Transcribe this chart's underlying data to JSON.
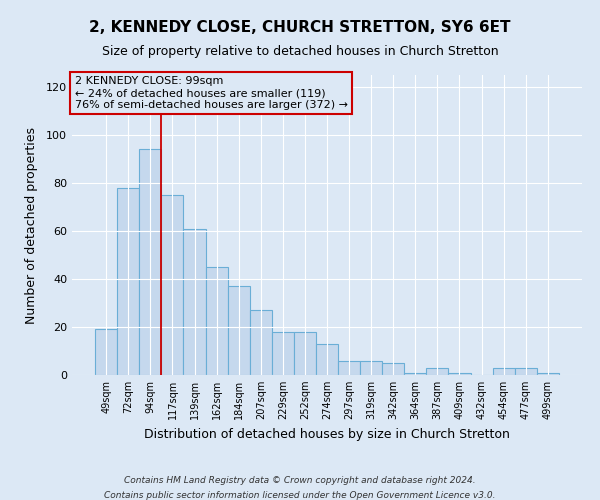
{
  "title": "2, KENNEDY CLOSE, CHURCH STRETTON, SY6 6ET",
  "subtitle": "Size of property relative to detached houses in Church Stretton",
  "xlabel": "Distribution of detached houses by size in Church Stretton",
  "ylabel": "Number of detached properties",
  "footer_line1": "Contains HM Land Registry data © Crown copyright and database right 2024.",
  "footer_line2": "Contains public sector information licensed under the Open Government Licence v3.0.",
  "annotation_line1": "2 KENNEDY CLOSE: 99sqm",
  "annotation_line2": "← 24% of detached houses are smaller (119)",
  "annotation_line3": "76% of semi-detached houses are larger (372) →",
  "bar_labels": [
    "49sqm",
    "72sqm",
    "94sqm",
    "117sqm",
    "139sqm",
    "162sqm",
    "184sqm",
    "207sqm",
    "229sqm",
    "252sqm",
    "274sqm",
    "297sqm",
    "319sqm",
    "342sqm",
    "364sqm",
    "387sqm",
    "409sqm",
    "432sqm",
    "454sqm",
    "477sqm",
    "499sqm"
  ],
  "bar_values": [
    19,
    78,
    94,
    75,
    61,
    45,
    37,
    27,
    18,
    18,
    13,
    6,
    6,
    5,
    1,
    3,
    1,
    0,
    3,
    3,
    1
  ],
  "bar_color": "#c5d8ed",
  "bar_edge_color": "#6aaed6",
  "vline_x_idx": 2,
  "vline_color": "#cc0000",
  "ylim": [
    0,
    125
  ],
  "yticks": [
    0,
    20,
    40,
    60,
    80,
    100,
    120
  ],
  "annotation_box_edge": "#cc0000",
  "background_color": "#dce8f5",
  "axes_background": "#dce8f5",
  "title_fontsize": 11,
  "subtitle_fontsize": 9,
  "grid_color": "#ffffff",
  "footer_color": "#333333"
}
